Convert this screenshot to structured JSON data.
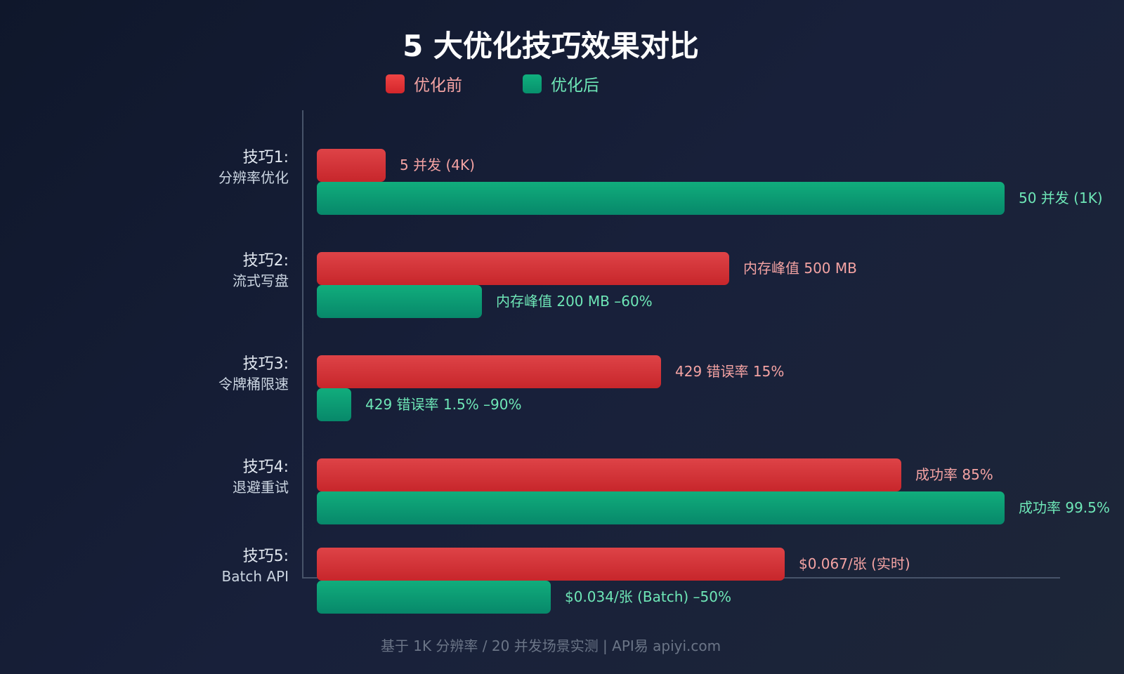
{
  "chart_data": {
    "type": "bar",
    "orientation": "horizontal",
    "title": "5 大优化技巧效果对比",
    "legend": {
      "placement": "top-center",
      "entries": [
        "优化前",
        "优化后"
      ]
    },
    "colors": {
      "before": "#dc3c40",
      "after": "#0d9f74",
      "before_label": "#f4a3a3",
      "after_label": "#6ee7b7"
    },
    "grid": false,
    "categories": [
      {
        "line1": "技巧1:",
        "line2": "分辨率优化"
      },
      {
        "line1": "技巧2:",
        "line2": "流式写盘"
      },
      {
        "line1": "技巧3:",
        "line2": "令牌桶限速"
      },
      {
        "line1": "技巧4:",
        "line2": "退避重试"
      },
      {
        "line1": "技巧5:",
        "line2": "Batch API"
      }
    ],
    "series": [
      {
        "name": "优化前",
        "values": [
          10,
          60,
          50,
          85,
          68
        ],
        "labels": [
          "5 并发 (4K)",
          "内存峰值 500 MB",
          "429 错误率 15%",
          "成功率 85%",
          "$0.067/张 (实时)"
        ]
      },
      {
        "name": "优化后",
        "values": [
          100,
          24,
          5,
          100,
          34
        ],
        "labels": [
          "50 并发 (1K)",
          "内存峰值 200 MB –60%",
          "429 错误率 1.5% –90%",
          "成功率 99.5%",
          "$0.034/张 (Batch) –50%"
        ]
      }
    ],
    "xlim": [
      0,
      100
    ],
    "footer": "基于 1K 分辨率 / 20 并发场景实测 | API易 apiyi.com"
  }
}
